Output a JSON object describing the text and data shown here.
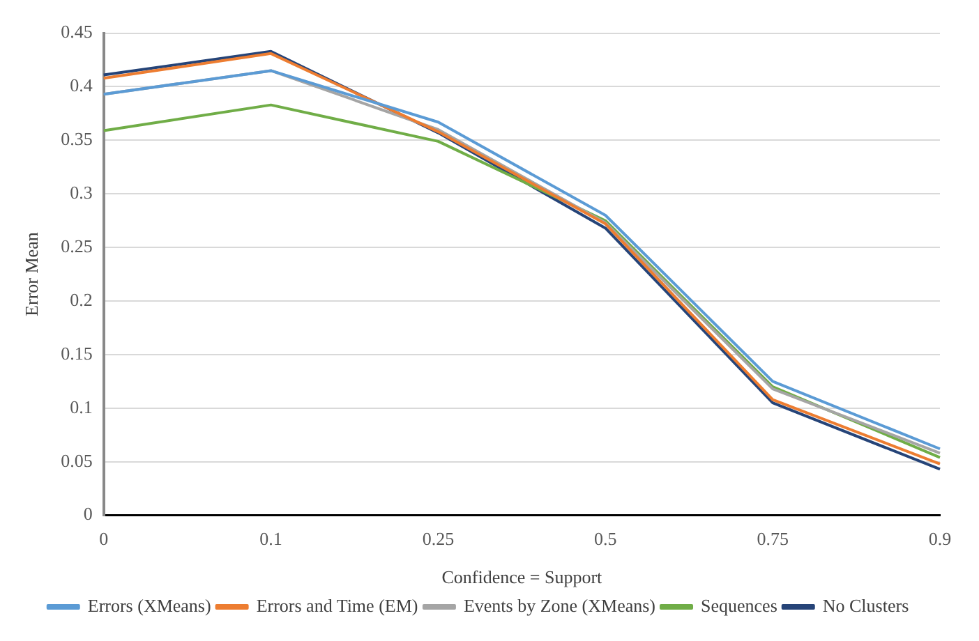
{
  "chart_data": {
    "type": "line",
    "xlabel": "Confidence = Support",
    "ylabel": "Error Mean",
    "categories": [
      "0",
      "0.1",
      "0.25",
      "0.5",
      "0.75",
      "0.9"
    ],
    "series": [
      {
        "name": "Errors (XMeans)",
        "color": "#5b9bd5",
        "values": [
          0.393,
          0.415,
          0.367,
          0.28,
          0.125,
          0.062
        ]
      },
      {
        "name": "Errors and Time (EM)",
        "color": "#ed7d31",
        "values": [
          0.408,
          0.431,
          0.358,
          0.272,
          0.108,
          0.048
        ]
      },
      {
        "name": "Events by Zone (XMeans)",
        "color": "#a5a5a5",
        "values": [
          0.393,
          0.415,
          0.36,
          0.273,
          0.118,
          0.058
        ]
      },
      {
        "name": "Sequences",
        "color": "#70ad47",
        "values": [
          0.359,
          0.383,
          0.349,
          0.275,
          0.12,
          0.054
        ]
      },
      {
        "name": "No Clusters",
        "color": "#264478",
        "values": [
          0.411,
          0.433,
          0.357,
          0.268,
          0.105,
          0.043
        ]
      }
    ],
    "ylim": [
      0,
      0.45
    ],
    "yticks": [
      0,
      0.05,
      0.1,
      0.15,
      0.2,
      0.25,
      0.3,
      0.35,
      0.4,
      0.45
    ],
    "grid": "y",
    "legend": "bottom",
    "marker": "none",
    "line_style": "solid"
  }
}
